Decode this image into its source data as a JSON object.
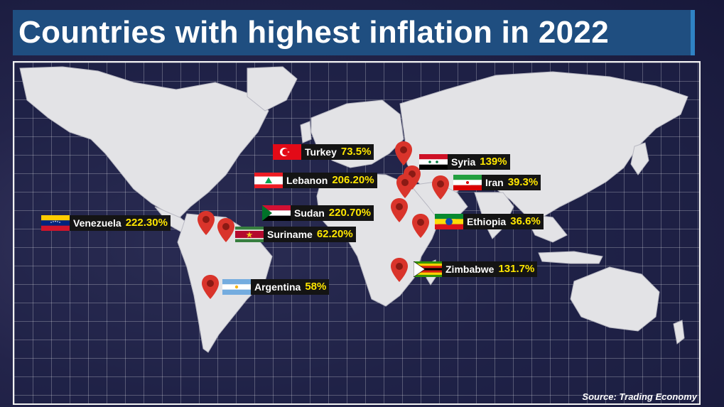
{
  "title": "Countries with highest inflation in 2022",
  "source": "Source: Trading Economy",
  "countries": [
    {
      "name": "Turkey",
      "value": "73.5%"
    },
    {
      "name": "Syria",
      "value": "139%"
    },
    {
      "name": "Lebanon",
      "value": "206.20%"
    },
    {
      "name": "Iran",
      "value": "39.3%"
    },
    {
      "name": "Sudan",
      "value": "220.70%"
    },
    {
      "name": "Venezuela",
      "value": "222.30%"
    },
    {
      "name": "Ethiopia",
      "value": "36.6%"
    },
    {
      "name": "Suriname",
      "value": "62.20%"
    },
    {
      "name": "Zimbabwe",
      "value": "131.7%"
    },
    {
      "name": "Argentina",
      "value": "58%"
    }
  ],
  "colors": {
    "title_bg": "#1f4e80",
    "title_accent": "#2f82c4",
    "value_text": "#ffe600",
    "pin": "#d9342b",
    "land": "#e3e3e6"
  },
  "icons": [
    "map-pin-icon",
    "flag-icon"
  ]
}
